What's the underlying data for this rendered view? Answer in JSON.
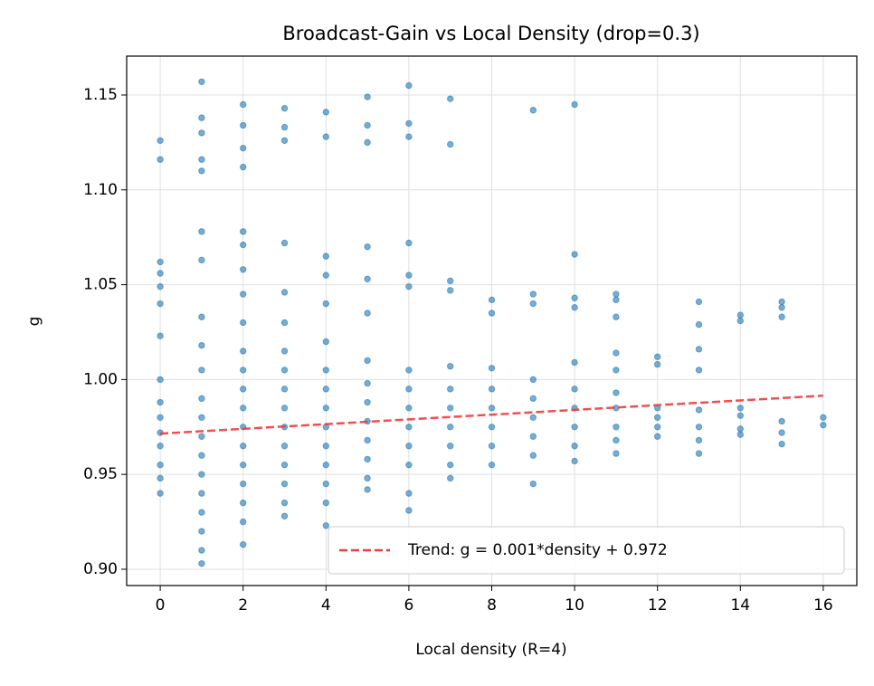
{
  "chart_data": {
    "type": "scatter",
    "title": "Broadcast-Gain vs Local Density (drop=0.3)",
    "xlabel": "Local density (R=4)",
    "ylabel": "g",
    "xlim": [
      -0.81,
      16.81
    ],
    "ylim": [
      0.8914,
      1.1705
    ],
    "xticks": [
      0,
      2,
      4,
      6,
      8,
      10,
      12,
      14,
      16
    ],
    "yticks": [
      {
        "value": 0.9,
        "label": "0.90"
      },
      0.95,
      {
        "value": 1.0,
        "label": "1.00"
      },
      1.05,
      {
        "value": 1.1,
        "label": "1.10"
      },
      1.15
    ],
    "grid": true,
    "legend": "lower right",
    "series": [
      {
        "type": "scatter",
        "color": "#1f77b4",
        "x": [
          0,
          0,
          0,
          0,
          0,
          0,
          0,
          0,
          0,
          0,
          0,
          0,
          0,
          0,
          0,
          1,
          1,
          1,
          1,
          1,
          1,
          1,
          1,
          1,
          1,
          1,
          1,
          1,
          1,
          1,
          1,
          1,
          1,
          1,
          1,
          2,
          2,
          2,
          2,
          2,
          2,
          2,
          2,
          2,
          2,
          2,
          2,
          2,
          2,
          2,
          2,
          2,
          2,
          2,
          2,
          3,
          3,
          3,
          3,
          3,
          3,
          3,
          3,
          3,
          3,
          3,
          3,
          3,
          3,
          3,
          3,
          4,
          4,
          4,
          4,
          4,
          4,
          4,
          4,
          4,
          4,
          4,
          4,
          4,
          4,
          4,
          5,
          5,
          5,
          5,
          5,
          5,
          5,
          5,
          5,
          5,
          5,
          5,
          5,
          5,
          6,
          6,
          6,
          6,
          6,
          6,
          6,
          6,
          6,
          6,
          6,
          6,
          6,
          6,
          7,
          7,
          7,
          7,
          7,
          7,
          7,
          7,
          7,
          7,
          7,
          8,
          8,
          8,
          8,
          8,
          8,
          8,
          8,
          9,
          9,
          9,
          9,
          9,
          9,
          9,
          9,
          9,
          10,
          10,
          10,
          10,
          10,
          10,
          10,
          10,
          10,
          10,
          11,
          11,
          11,
          11,
          11,
          11,
          11,
          11,
          11,
          11,
          12,
          12,
          12,
          12,
          12,
          12,
          13,
          13,
          13,
          13,
          13,
          13,
          13,
          13,
          14,
          14,
          14,
          14,
          14,
          14,
          15,
          15,
          15,
          15,
          15,
          15,
          16,
          16
        ],
        "values": [
          1.126,
          1.116,
          1.062,
          1.056,
          1.049,
          1.04,
          1.023,
          1.0,
          0.988,
          0.98,
          0.972,
          0.965,
          0.955,
          0.948,
          0.94,
          1.157,
          1.138,
          1.13,
          1.116,
          1.11,
          1.078,
          1.063,
          1.033,
          1.018,
          1.005,
          0.99,
          0.98,
          0.97,
          0.96,
          0.95,
          0.94,
          0.93,
          0.92,
          0.91,
          0.903,
          1.145,
          1.134,
          1.122,
          1.112,
          1.078,
          1.071,
          1.058,
          1.045,
          1.03,
          1.015,
          1.005,
          0.995,
          0.985,
          0.975,
          0.965,
          0.955,
          0.945,
          0.935,
          0.925,
          0.913,
          1.143,
          1.133,
          1.126,
          1.072,
          1.046,
          1.03,
          1.015,
          1.005,
          0.995,
          0.985,
          0.975,
          0.965,
          0.955,
          0.945,
          0.935,
          0.928,
          1.141,
          1.128,
          1.065,
          1.055,
          1.04,
          1.02,
          1.005,
          0.995,
          0.985,
          0.975,
          0.965,
          0.955,
          0.945,
          0.935,
          0.923,
          1.149,
          1.134,
          1.125,
          1.07,
          1.053,
          1.035,
          1.01,
          0.998,
          0.988,
          0.978,
          0.968,
          0.958,
          0.948,
          0.942,
          1.155,
          1.135,
          1.128,
          1.072,
          1.055,
          1.049,
          1.005,
          0.995,
          0.985,
          0.975,
          0.965,
          0.955,
          0.94,
          0.931,
          1.148,
          1.124,
          1.052,
          1.047,
          1.007,
          0.995,
          0.985,
          0.975,
          0.965,
          0.955,
          0.948,
          1.042,
          1.035,
          1.006,
          0.995,
          0.985,
          0.975,
          0.965,
          0.955,
          1.142,
          1.045,
          1.04,
          1.0,
          0.99,
          0.98,
          0.97,
          0.96,
          0.945,
          1.145,
          1.066,
          1.043,
          1.038,
          1.009,
          0.995,
          0.985,
          0.975,
          0.965,
          0.957,
          1.045,
          1.042,
          1.033,
          1.014,
          1.005,
          0.993,
          0.985,
          0.975,
          0.968,
          0.961,
          1.012,
          1.008,
          0.985,
          0.98,
          0.975,
          0.97,
          1.041,
          1.029,
          1.016,
          1.005,
          0.984,
          0.975,
          0.968,
          0.961,
          1.034,
          1.031,
          0.985,
          0.981,
          0.974,
          0.971,
          1.041,
          1.038,
          1.033,
          0.978,
          0.972,
          0.966,
          0.98,
          0.976
        ]
      },
      {
        "type": "line",
        "name": "Trend: g = 0.001*density + 0.972",
        "color": "#f03c3c",
        "dashed": true,
        "x": [
          0,
          16
        ],
        "values": [
          0.9715,
          0.9915
        ]
      }
    ]
  }
}
